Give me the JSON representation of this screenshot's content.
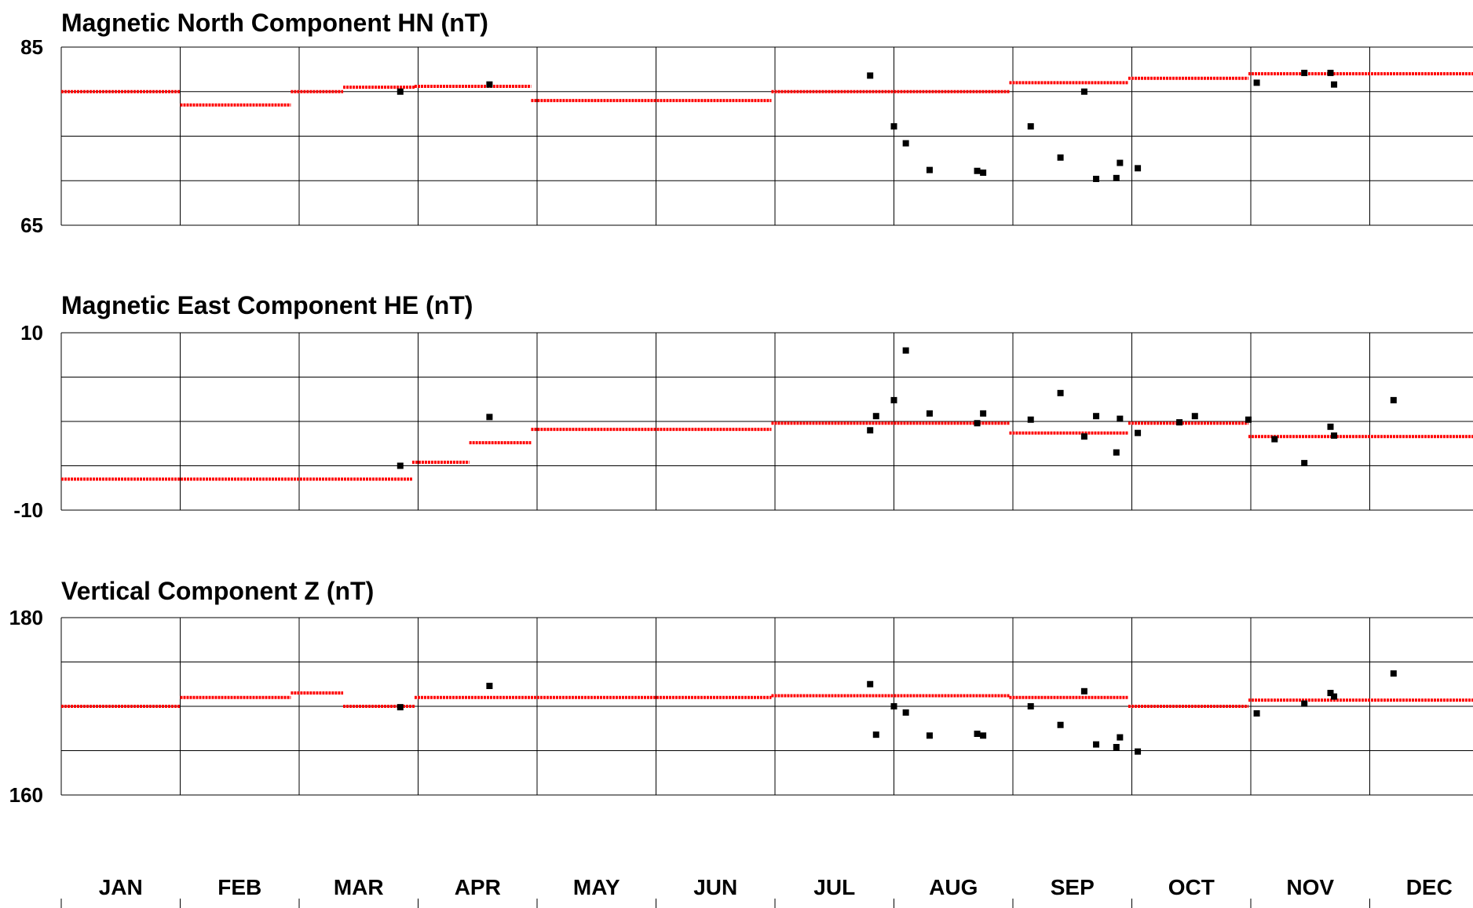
{
  "months": [
    "JAN",
    "FEB",
    "MAR",
    "APR",
    "MAY",
    "JUN",
    "JUL",
    "AUG",
    "SEP",
    "OCT",
    "NOV",
    "DEC"
  ],
  "chart_data": [
    {
      "type": "scatter",
      "title": "Magnetic North Component HN (nT)",
      "ylim": [
        65,
        85
      ],
      "yticks": [
        65,
        85
      ],
      "x_units": "month (1.0 = start of JAN)",
      "colors": {
        "points": "#000000",
        "level": "#ff0000"
      },
      "points": [
        {
          "x": 3.85,
          "y": 80.0
        },
        {
          "x": 4.6,
          "y": 80.8
        },
        {
          "x": 7.8,
          "y": 81.8
        },
        {
          "x": 8.0,
          "y": 76.1
        },
        {
          "x": 8.1,
          "y": 74.2
        },
        {
          "x": 8.3,
          "y": 71.2
        },
        {
          "x": 8.7,
          "y": 71.1
        },
        {
          "x": 8.75,
          "y": 70.9
        },
        {
          "x": 9.15,
          "y": 76.1
        },
        {
          "x": 9.4,
          "y": 72.6
        },
        {
          "x": 9.6,
          "y": 80.0
        },
        {
          "x": 9.7,
          "y": 70.2
        },
        {
          "x": 9.87,
          "y": 70.3
        },
        {
          "x": 9.9,
          "y": 72.0
        },
        {
          "x": 10.05,
          "y": 71.4
        },
        {
          "x": 11.05,
          "y": 81.0
        },
        {
          "x": 11.45,
          "y": 82.1
        },
        {
          "x": 11.67,
          "y": 82.1
        },
        {
          "x": 11.7,
          "y": 80.8
        }
      ],
      "levels": [
        {
          "x0": 1.0,
          "x1": 2.0,
          "y": 80.0
        },
        {
          "x0": 2.0,
          "x1": 2.93,
          "y": 78.5
        },
        {
          "x0": 2.93,
          "x1": 3.37,
          "y": 80.0
        },
        {
          "x0": 3.37,
          "x1": 3.97,
          "y": 80.5
        },
        {
          "x0": 3.97,
          "x1": 4.95,
          "y": 80.6
        },
        {
          "x0": 4.95,
          "x1": 6.97,
          "y": 79.0
        },
        {
          "x0": 6.97,
          "x1": 8.97,
          "y": 80.0
        },
        {
          "x0": 8.97,
          "x1": 9.97,
          "y": 81.0
        },
        {
          "x0": 9.97,
          "x1": 10.98,
          "y": 81.5
        },
        {
          "x0": 10.98,
          "x1": 12.9,
          "y": 82.0
        }
      ]
    },
    {
      "type": "scatter",
      "title": "Magnetic East Component HE (nT)",
      "ylim": [
        -10,
        10
      ],
      "yticks": [
        -10,
        10
      ],
      "x_units": "month (1.0 = start of JAN)",
      "colors": {
        "points": "#000000",
        "level": "#ff0000"
      },
      "points": [
        {
          "x": 3.85,
          "y": -5.0
        },
        {
          "x": 4.6,
          "y": 0.5
        },
        {
          "x": 7.8,
          "y": -1.0
        },
        {
          "x": 7.85,
          "y": 0.6
        },
        {
          "x": 8.0,
          "y": 2.4
        },
        {
          "x": 8.1,
          "y": 8.0
        },
        {
          "x": 8.3,
          "y": 0.9
        },
        {
          "x": 8.7,
          "y": -0.2
        },
        {
          "x": 8.75,
          "y": 0.9
        },
        {
          "x": 9.15,
          "y": 0.2
        },
        {
          "x": 9.4,
          "y": 3.2
        },
        {
          "x": 9.6,
          "y": -1.7
        },
        {
          "x": 9.7,
          "y": 0.6
        },
        {
          "x": 9.87,
          "y": -3.5
        },
        {
          "x": 9.9,
          "y": 0.3
        },
        {
          "x": 10.05,
          "y": -1.3
        },
        {
          "x": 10.4,
          "y": -0.1
        },
        {
          "x": 10.53,
          "y": 0.6
        },
        {
          "x": 10.98,
          "y": 0.2
        },
        {
          "x": 11.2,
          "y": -2.0
        },
        {
          "x": 11.45,
          "y": -4.7
        },
        {
          "x": 11.67,
          "y": -0.6
        },
        {
          "x": 11.7,
          "y": -1.6
        },
        {
          "x": 12.2,
          "y": 2.4
        }
      ],
      "levels": [
        {
          "x0": 1.0,
          "x1": 3.95,
          "y": -6.5
        },
        {
          "x0": 3.95,
          "x1": 4.43,
          "y": -4.6
        },
        {
          "x0": 4.43,
          "x1": 4.95,
          "y": -2.4
        },
        {
          "x0": 4.95,
          "x1": 6.97,
          "y": -0.9
        },
        {
          "x0": 6.97,
          "x1": 8.97,
          "y": -0.2
        },
        {
          "x0": 8.97,
          "x1": 9.97,
          "y": -1.3
        },
        {
          "x0": 9.97,
          "x1": 10.98,
          "y": -0.2
        },
        {
          "x0": 10.98,
          "x1": 12.9,
          "y": -1.7
        }
      ]
    },
    {
      "type": "scatter",
      "title": "Vertical Component Z (nT)",
      "ylim": [
        160,
        180
      ],
      "yticks": [
        160,
        180
      ],
      "x_units": "month (1.0 = start of JAN)",
      "colors": {
        "points": "#000000",
        "level": "#ff0000"
      },
      "points": [
        {
          "x": 3.85,
          "y": 169.9
        },
        {
          "x": 4.6,
          "y": 172.3
        },
        {
          "x": 7.8,
          "y": 172.5
        },
        {
          "x": 7.85,
          "y": 166.8
        },
        {
          "x": 8.0,
          "y": 170.0
        },
        {
          "x": 8.1,
          "y": 169.3
        },
        {
          "x": 8.3,
          "y": 166.7
        },
        {
          "x": 8.7,
          "y": 166.9
        },
        {
          "x": 8.75,
          "y": 166.7
        },
        {
          "x": 9.15,
          "y": 170.0
        },
        {
          "x": 9.4,
          "y": 167.9
        },
        {
          "x": 9.6,
          "y": 171.7
        },
        {
          "x": 9.7,
          "y": 165.7
        },
        {
          "x": 9.87,
          "y": 165.4
        },
        {
          "x": 9.9,
          "y": 166.5
        },
        {
          "x": 10.05,
          "y": 164.9
        },
        {
          "x": 11.05,
          "y": 169.2
        },
        {
          "x": 11.45,
          "y": 170.3
        },
        {
          "x": 11.67,
          "y": 171.5
        },
        {
          "x": 11.7,
          "y": 171.1
        },
        {
          "x": 12.2,
          "y": 173.7
        }
      ],
      "levels": [
        {
          "x0": 1.0,
          "x1": 2.0,
          "y": 170.0
        },
        {
          "x0": 2.0,
          "x1": 2.93,
          "y": 171.0
        },
        {
          "x0": 2.93,
          "x1": 3.37,
          "y": 171.5
        },
        {
          "x0": 3.37,
          "x1": 3.97,
          "y": 170.0
        },
        {
          "x0": 3.97,
          "x1": 6.97,
          "y": 171.0
        },
        {
          "x0": 6.97,
          "x1": 8.97,
          "y": 171.2
        },
        {
          "x0": 8.97,
          "x1": 9.97,
          "y": 171.0
        },
        {
          "x0": 9.97,
          "x1": 10.98,
          "y": 170.0
        },
        {
          "x0": 10.98,
          "x1": 12.9,
          "y": 170.7
        }
      ]
    }
  ]
}
